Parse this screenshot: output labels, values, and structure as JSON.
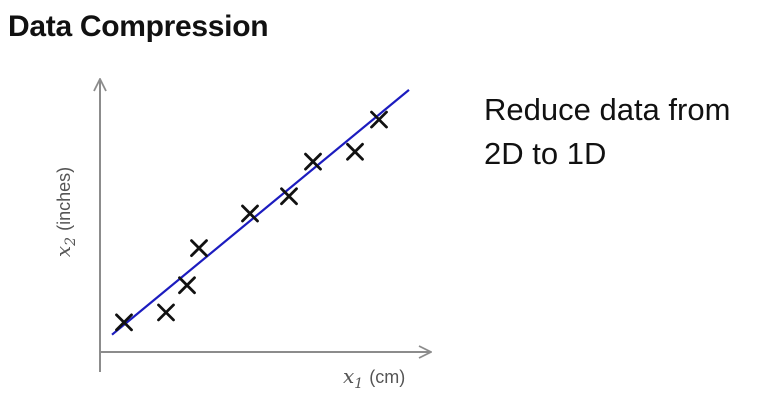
{
  "title": "Data Compression",
  "side_text": [
    "Reduce data from",
    "2D to 1D"
  ],
  "chart_data": {
    "type": "scatter",
    "xlabel": "x1 (cm)",
    "xlabel_var": "x",
    "xlabel_sub": "1",
    "xlabel_unit": "(cm)",
    "ylabel": "x2 (inches)",
    "ylabel_var": "x",
    "ylabel_sub": "2",
    "ylabel_unit": "(inches)",
    "x": [
      0.8,
      2.2,
      2.9,
      3.3,
      5.0,
      6.3,
      7.1,
      8.5,
      9.3
    ],
    "y": [
      1.2,
      1.6,
      2.7,
      4.2,
      5.6,
      6.3,
      7.7,
      8.1,
      9.4
    ],
    "fit_line": {
      "x": [
        0.4,
        10.3
      ],
      "y": [
        0.7,
        10.6
      ]
    },
    "xlim": [
      0,
      11
    ],
    "ylim": [
      0,
      11
    ],
    "grid": false,
    "colors": {
      "points": "#111111",
      "fit_line": "#1c1cbf",
      "axes": "#8c8c8c"
    }
  }
}
